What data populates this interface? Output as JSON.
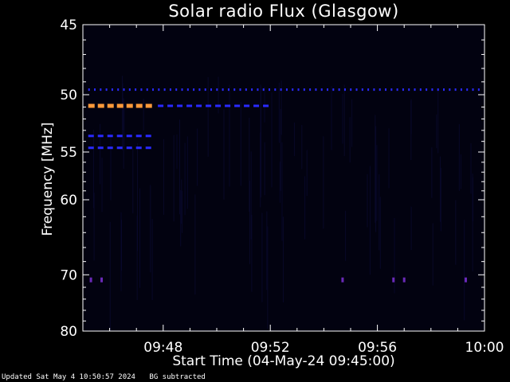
{
  "chart_data": {
    "type": "heatmap",
    "title": "Solar radio Flux (Glasgow)",
    "xlabel": "Start Time (04-May-24 09:45:00)",
    "ylabel": "Frequency [MHz]",
    "x_tick_labels": [
      "09:48",
      "09:52",
      "09:56",
      "10:00"
    ],
    "x_ticks_min": [
      3,
      7,
      11,
      15
    ],
    "xlim_min": [
      0,
      15
    ],
    "y_tick_labels": [
      "45",
      "50",
      "55",
      "60",
      "70",
      "80"
    ],
    "y_ticks_mhz": [
      45,
      50,
      55,
      60,
      70,
      80
    ],
    "ylim_mhz": [
      45,
      80
    ],
    "y_scale": "reciprocal (1/f)",
    "background": "background subtracted",
    "colors": {
      "background": "#000000",
      "plot": "#020210",
      "axes": "#ffffff",
      "blue": "#2a2aff",
      "orange": "#ff9a3a",
      "violet": "#6a2ab8"
    },
    "features": [
      {
        "name": "50 MHz dashed band",
        "freq_mhz": 49.6,
        "start_min": 0.2,
        "end_min": 15,
        "color": "blue"
      },
      {
        "name": "51 MHz orange dashes",
        "freq_mhz": 50.9,
        "start_min": 0.2,
        "end_min": 2.8,
        "color": "orange"
      },
      {
        "name": "51 MHz blue dashes",
        "freq_mhz": 50.9,
        "start_min": 2.8,
        "end_min": 7.0,
        "color": "blue"
      },
      {
        "name": "53 MHz dashes",
        "freq_mhz": 53.5,
        "start_min": 0.2,
        "end_min": 2.8,
        "color": "blue"
      },
      {
        "name": "54.6 MHz dashes",
        "freq_mhz": 54.6,
        "start_min": 0.2,
        "end_min": 2.8,
        "color": "blue"
      },
      {
        "name": "71 MHz spots",
        "freq_mhz": 70.8,
        "times_min": [
          0.3,
          0.7,
          9.7,
          11.6,
          12.0,
          14.3
        ],
        "color": "violet"
      }
    ]
  },
  "footer": {
    "updated": "Updated Sat May  4 10:50:57 2024",
    "note": "BG subtracted"
  }
}
